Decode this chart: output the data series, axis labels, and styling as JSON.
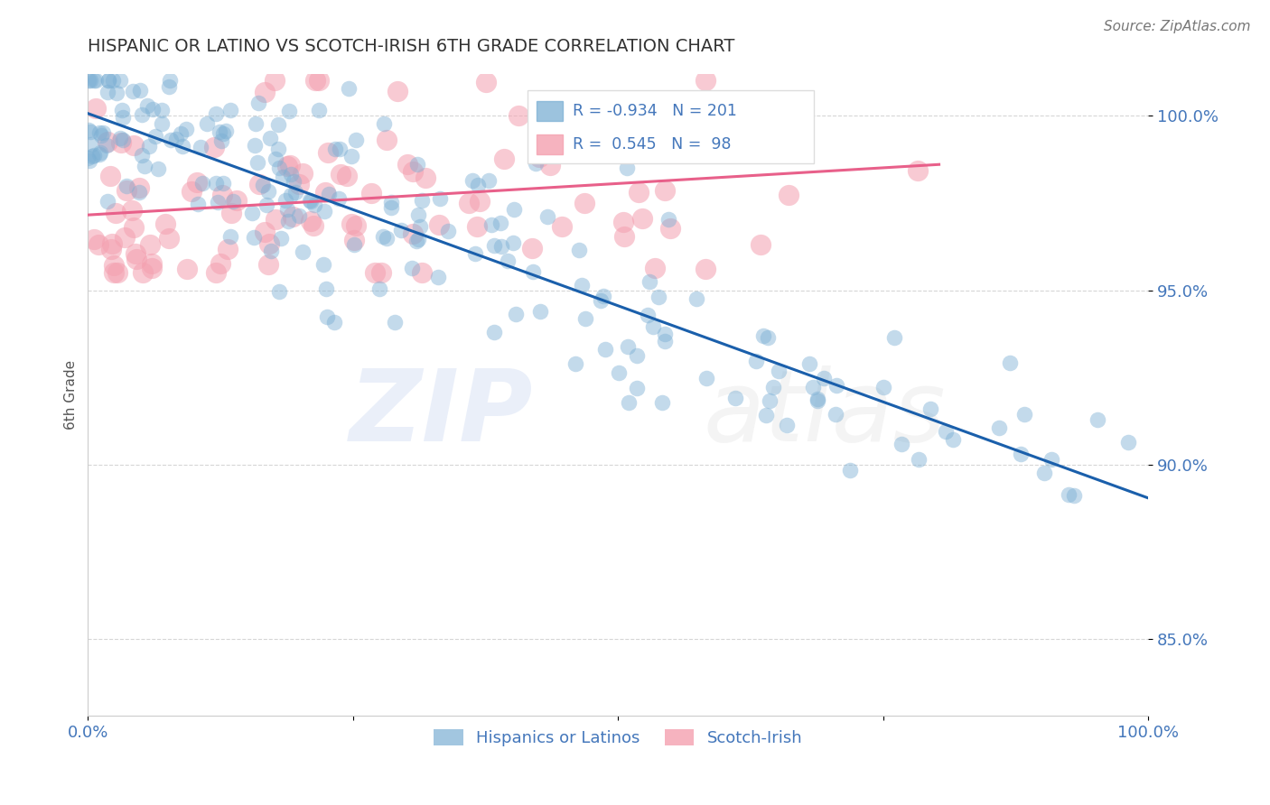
{
  "title": "HISPANIC OR LATINO VS SCOTCH-IRISH 6TH GRADE CORRELATION CHART",
  "source_text": "Source: ZipAtlas.com",
  "ylabel": "6th Grade",
  "blue_R": -0.934,
  "blue_N": 201,
  "pink_R": 0.545,
  "pink_N": 98,
  "blue_label": "Hispanics or Latinos",
  "pink_label": "Scotch-Irish",
  "blue_color": "#7BAFD4",
  "pink_color": "#F4A0B0",
  "blue_line_color": "#1A5FAB",
  "pink_line_color": "#E8608A",
  "title_color": "#333333",
  "axis_label_color": "#4477BB",
  "xlim": [
    0.0,
    1.0
  ],
  "ylim": [
    0.828,
    1.012
  ],
  "yticks": [
    0.85,
    0.9,
    0.95,
    1.0
  ],
  "ytick_labels": [
    "85.0%",
    "90.0%",
    "95.0%",
    "100.0%"
  ],
  "xticks": [
    0.0,
    0.25,
    0.5,
    0.75,
    1.0
  ],
  "xtick_labels": [
    "0.0%",
    "",
    "",
    "",
    "100.0%"
  ],
  "blue_seed": 42,
  "pink_seed": 77,
  "blue_intercept": 1.002,
  "blue_slope": -0.112,
  "pink_intercept": 0.971,
  "pink_slope": 0.028
}
